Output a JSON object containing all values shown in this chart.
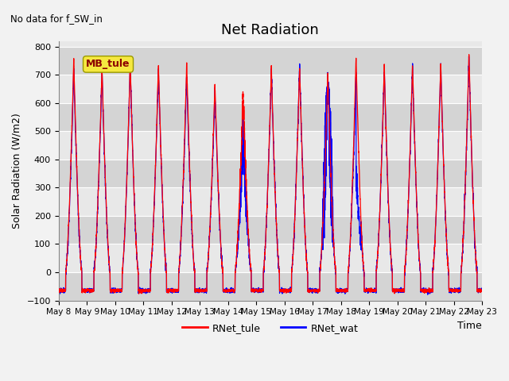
{
  "title": "Net Radiation",
  "note": "No data for f_SW_in",
  "ylabel": "Solar Radiation (W/m2)",
  "xlabel": "Time",
  "ylim": [
    -100,
    820
  ],
  "yticks": [
    -100,
    0,
    100,
    200,
    300,
    400,
    500,
    600,
    700,
    800
  ],
  "legend_labels": [
    "RNet_tule",
    "RNet_wat"
  ],
  "legend_colors": [
    "red",
    "blue"
  ],
  "annotation_text": "MB_tule",
  "figsize": [
    6.4,
    4.8
  ],
  "dpi": 100,
  "start_day": 8,
  "n_days": 15,
  "band_colors": [
    "#e8e8e8",
    "#d4d4d4"
  ]
}
